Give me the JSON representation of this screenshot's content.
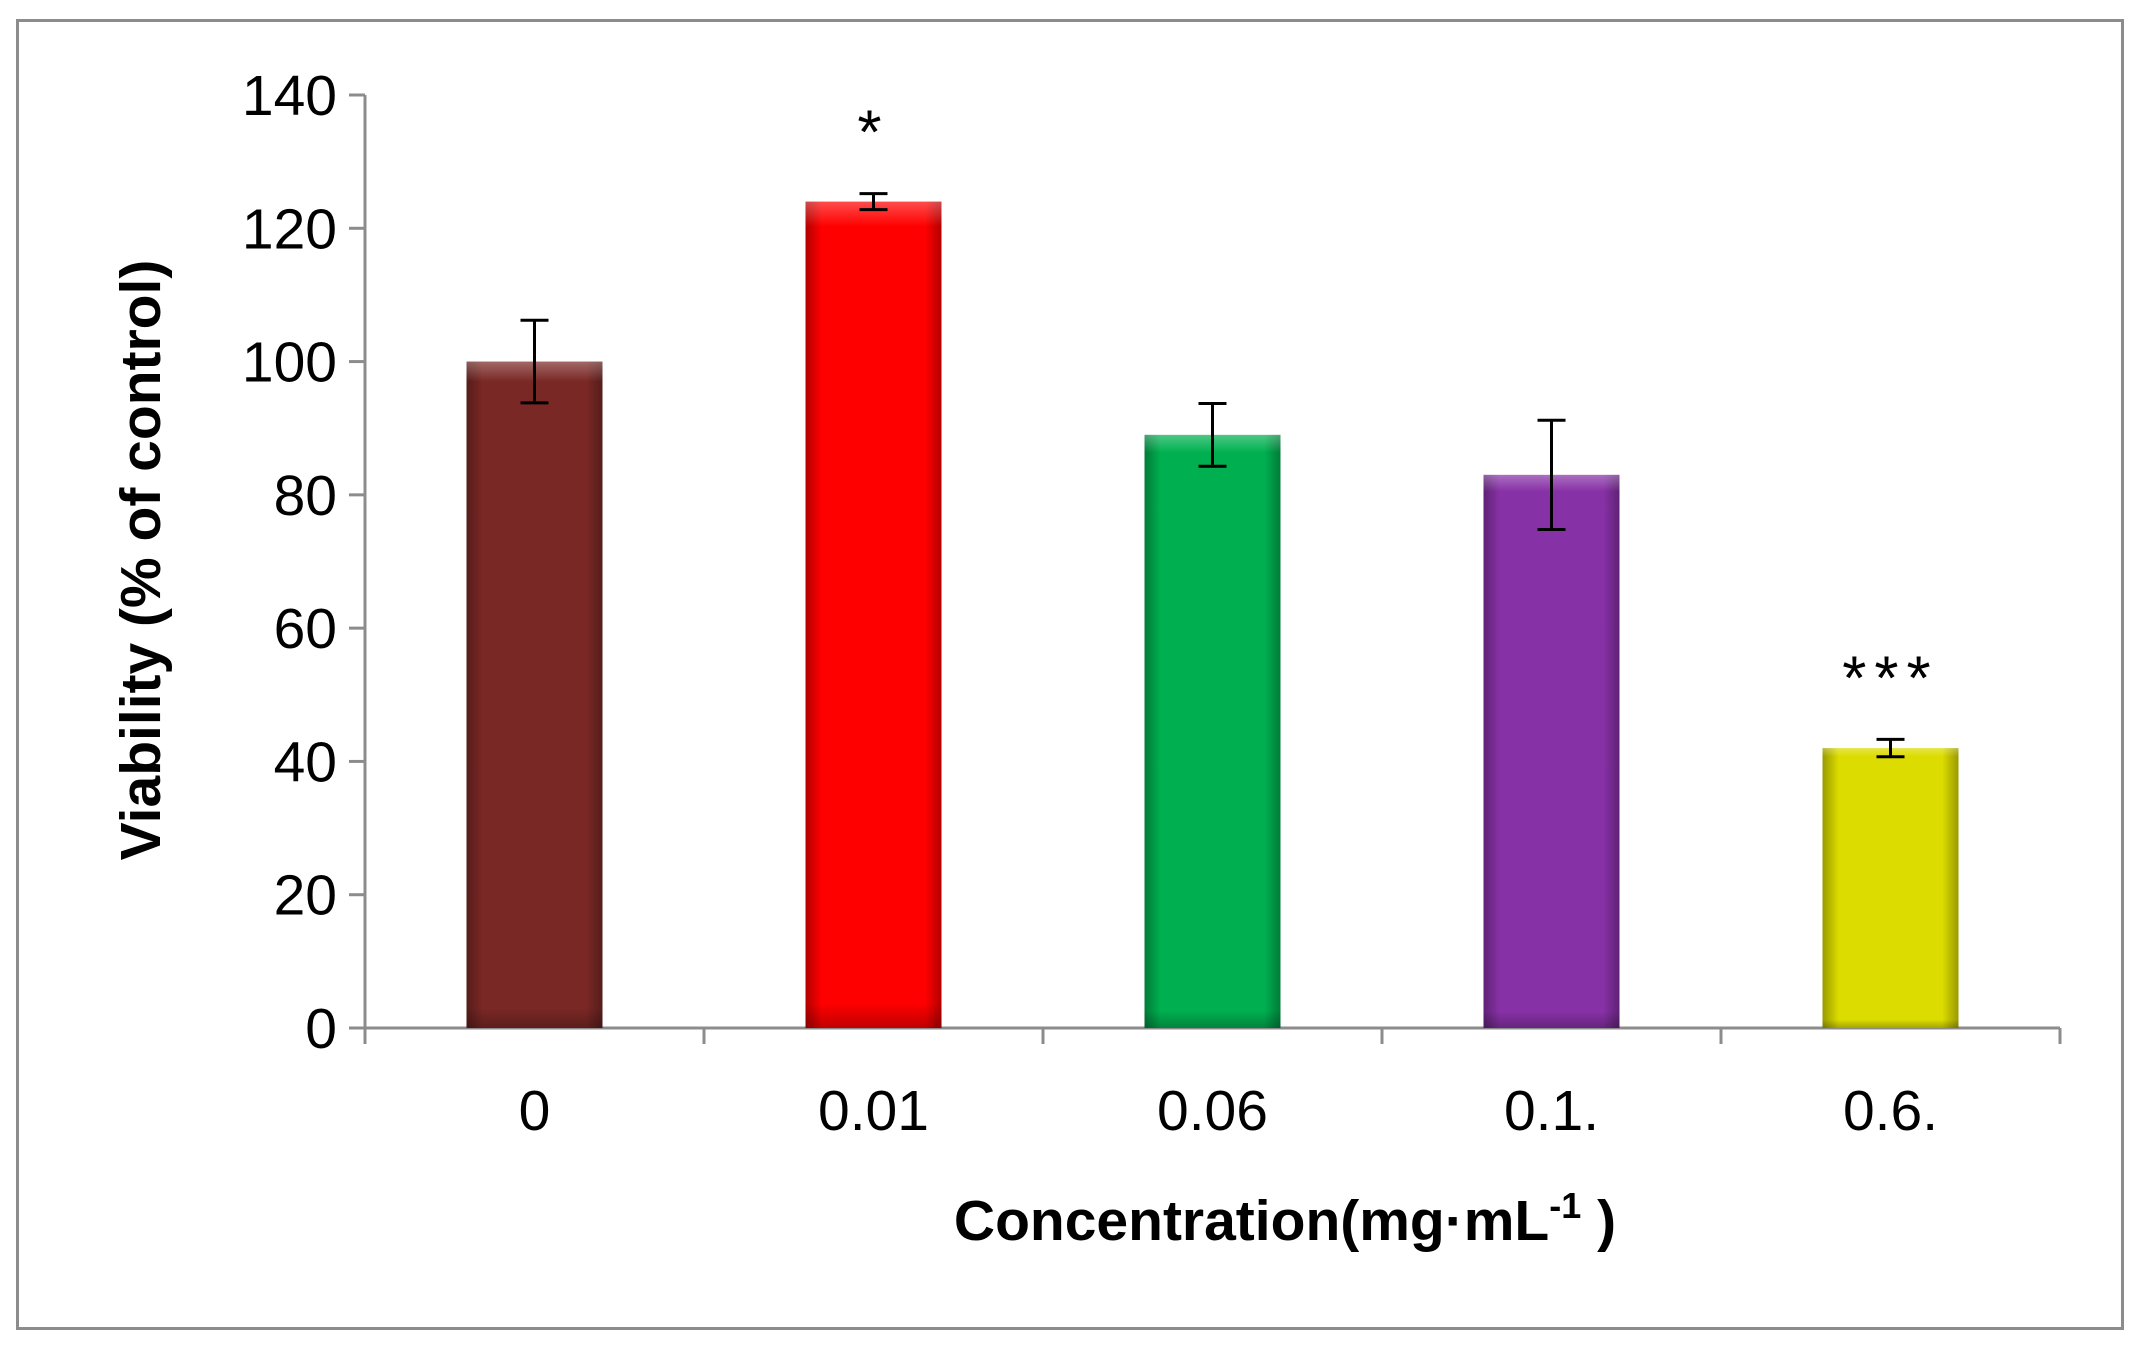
{
  "chart_data": {
    "type": "bar",
    "title": "",
    "categories": [
      "0",
      "0.01",
      "0.06",
      "0.1.",
      "0.6."
    ],
    "values": [
      100,
      124,
      89,
      83,
      42
    ],
    "errors": [
      6.2,
      1.2,
      4.7,
      8.2,
      1.3
    ],
    "annotations": [
      "",
      "*",
      "",
      "",
      "***"
    ],
    "bar_colors": [
      "#7a2825",
      "#ff0000",
      "#00b050",
      "#8731a6",
      "#dcdc00"
    ],
    "xlabel": "Concentration(mg·mL",
    "xlabel_superscript": "-1",
    "xlabel_suffix": " )",
    "ylabel": "Viability (% of control)",
    "ylim": [
      0,
      140
    ],
    "yticks": [
      0,
      20,
      40,
      60,
      80,
      100,
      120,
      140
    ],
    "grid": false,
    "legend": "none"
  }
}
